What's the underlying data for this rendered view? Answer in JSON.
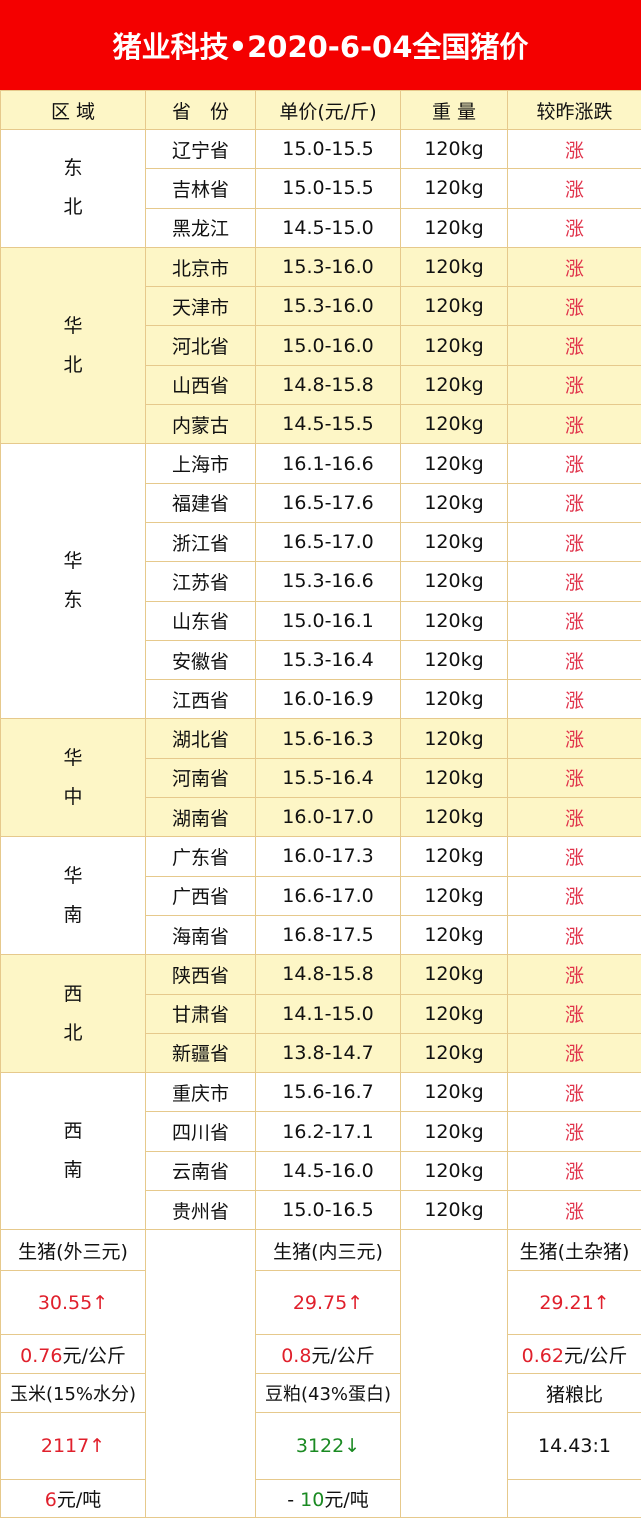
{
  "title": "猪业科技•2020-6-04全国猪价",
  "headers": [
    "区 域",
    "省　份",
    "单价(元/斤)",
    "重 量",
    "较昨涨跌"
  ],
  "colors": {
    "title_bg": "#f40000",
    "highlight_bg": "#fdf6c6",
    "rise": "#e0202c",
    "fall": "#1a8a22"
  },
  "regions": [
    {
      "name": "东\n北",
      "shaded": false,
      "rows": [
        [
          "辽宁省",
          "15.0-15.5",
          "120kg",
          "涨"
        ],
        [
          "吉林省",
          "15.0-15.5",
          "120kg",
          "涨"
        ],
        [
          "黑龙江",
          "14.5-15.0",
          "120kg",
          "涨"
        ]
      ]
    },
    {
      "name": "华\n北",
      "shaded": true,
      "rows": [
        [
          "北京市",
          "15.3-16.0",
          "120kg",
          "涨"
        ],
        [
          "天津市",
          "15.3-16.0",
          "120kg",
          "涨"
        ],
        [
          "河北省",
          "15.0-16.0",
          "120kg",
          "涨"
        ],
        [
          "山西省",
          "14.8-15.8",
          "120kg",
          "涨"
        ],
        [
          "内蒙古",
          "14.5-15.5",
          "120kg",
          "涨"
        ]
      ]
    },
    {
      "name": "华\n东",
      "shaded": false,
      "rows": [
        [
          "上海市",
          "16.1-16.6",
          "120kg",
          "涨"
        ],
        [
          "福建省",
          "16.5-17.6",
          "120kg",
          "涨"
        ],
        [
          "浙江省",
          "16.5-17.0",
          "120kg",
          "涨"
        ],
        [
          "江苏省",
          "15.3-16.6",
          "120kg",
          "涨"
        ],
        [
          "山东省",
          "15.0-16.1",
          "120kg",
          "涨"
        ],
        [
          "安徽省",
          "15.3-16.4",
          "120kg",
          "涨"
        ],
        [
          "江西省",
          "16.0-16.9",
          "120kg",
          "涨"
        ]
      ]
    },
    {
      "name": "华\n中",
      "shaded": true,
      "rows": [
        [
          "湖北省",
          "15.6-16.3",
          "120kg",
          "涨"
        ],
        [
          "河南省",
          "15.5-16.4",
          "120kg",
          "涨"
        ],
        [
          "湖南省",
          "16.0-17.0",
          "120kg",
          "涨"
        ]
      ]
    },
    {
      "name": "华\n南",
      "shaded": false,
      "rows": [
        [
          "广东省",
          "16.0-17.3",
          "120kg",
          "涨"
        ],
        [
          "广西省",
          "16.6-17.0",
          "120kg",
          "涨"
        ],
        [
          "海南省",
          "16.8-17.5",
          "120kg",
          "涨"
        ]
      ]
    },
    {
      "name": "西\n北",
      "shaded": true,
      "rows": [
        [
          "陕西省",
          "14.8-15.8",
          "120kg",
          "涨"
        ],
        [
          "甘肃省",
          "14.1-15.0",
          "120kg",
          "涨"
        ],
        [
          "新疆省",
          "13.8-14.7",
          "120kg",
          "涨"
        ]
      ]
    },
    {
      "name": "西\n南",
      "shaded": false,
      "rows": [
        [
          "重庆市",
          "15.6-16.7",
          "120kg",
          "涨"
        ],
        [
          "四川省",
          "16.2-17.1",
          "120kg",
          "涨"
        ],
        [
          "云南省",
          "14.5-16.0",
          "120kg",
          "涨"
        ],
        [
          "贵州省",
          "15.0-16.5",
          "120kg",
          "涨"
        ]
      ]
    }
  ],
  "summary": {
    "hog_outer": {
      "label": "生猪(外三元)",
      "value": "30.55↑",
      "change_num": "0.76",
      "change_unit": "元/公斤",
      "trend": "up"
    },
    "hog_inner": {
      "label": "生猪(内三元)",
      "value": "29.75↑",
      "change_num": "0.8",
      "change_unit": "元/公斤",
      "trend": "up"
    },
    "hog_local": {
      "label": "生猪(土杂猪)",
      "value": "29.21↑",
      "change_num": "0.62",
      "change_unit": "元/公斤",
      "trend": "up"
    },
    "corn": {
      "label": "玉米(15%水分)",
      "value": "2117↑",
      "change_num": "6",
      "change_unit": "元/吨",
      "trend": "up"
    },
    "soymeal": {
      "label": "豆粕(43%蛋白)",
      "value": "3122↓",
      "change_prefix": "- ",
      "change_num": "10",
      "change_unit": "元/吨",
      "trend": "down"
    },
    "ratio": {
      "label": "猪粮比",
      "value": "14.43:1"
    }
  }
}
